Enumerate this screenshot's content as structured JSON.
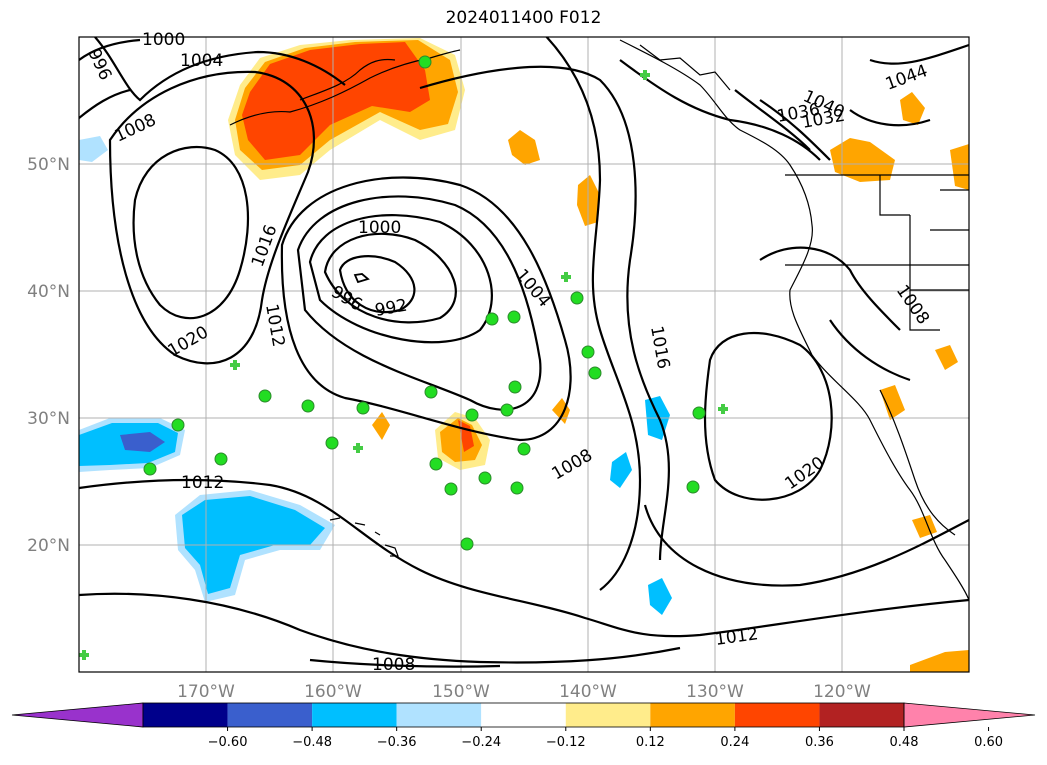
{
  "title": "2024011400 F012",
  "map": {
    "lon_range": [
      -180,
      -110
    ],
    "lat_range": [
      10,
      60
    ],
    "grid": true,
    "lon_labels": [
      "170°W",
      "160°W",
      "150°W",
      "140°W",
      "130°W",
      "120°W"
    ],
    "lat_labels": [
      "20°N",
      "30°N",
      "40°N",
      "50°N"
    ],
    "contour_labels": [
      "996",
      "1000",
      "1004",
      "1008",
      "1016",
      "1012",
      "1020",
      "1000",
      "996",
      "992",
      "1004",
      "1016",
      "1008",
      "1020",
      "1012",
      "1012",
      "1008",
      "1044",
      "1040",
      "1036",
      "1032",
      "1008"
    ],
    "colors": {
      "land_outline": "#000000",
      "grid": "#b0b0b0",
      "contour": "#000000",
      "marker_circle": "#22dd22",
      "marker_cross": "#44cc44"
    }
  },
  "colorbar": {
    "ticks": [
      "−0.60",
      "−0.48",
      "−0.36",
      "−0.24",
      "−0.12",
      "0.12",
      "0.24",
      "0.36",
      "0.48",
      "0.60"
    ],
    "colors": [
      "#9932cc",
      "#00008b",
      "#3a5fcd",
      "#00bfff",
      "#b0e2ff",
      "#ffffff",
      "#ffec8b",
      "#ffa500",
      "#ff4500",
      "#b22222",
      "#ff82ab"
    ]
  }
}
